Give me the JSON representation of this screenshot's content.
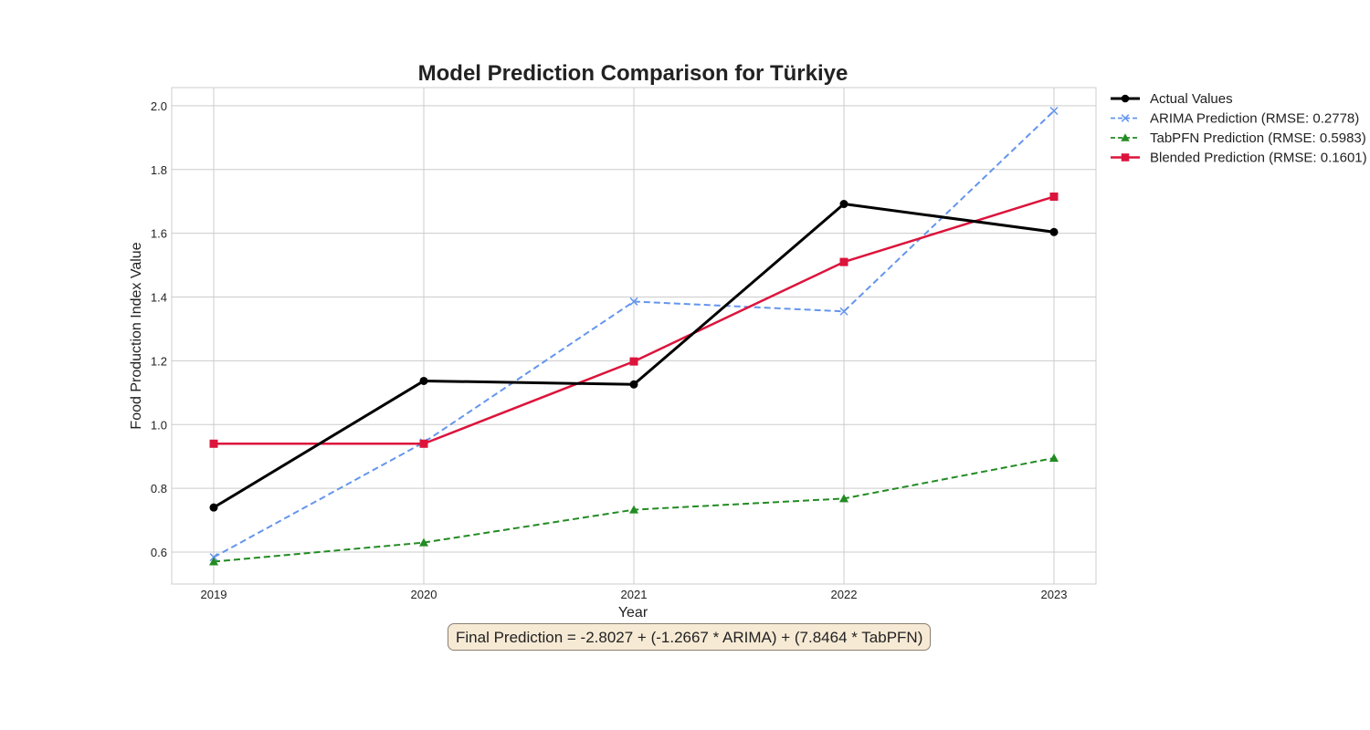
{
  "chart_data": {
    "type": "line",
    "title": "Model Prediction Comparison for Türkiye",
    "xlabel": "Year",
    "ylabel": "Food Production Index Value",
    "x": [
      "2019",
      "2020",
      "2021",
      "2022",
      "2023"
    ],
    "xlim": [
      2018.8,
      2023.2
    ],
    "ylim": [
      0.5,
      2.057
    ],
    "y_ticks": [
      "0.6",
      "0.8",
      "1.0",
      "1.2",
      "1.4",
      "1.6",
      "1.8",
      "2.0"
    ],
    "grid": true,
    "legend_position": "outside top-right",
    "series": [
      {
        "name": "Actual Values",
        "values": [
          0.74,
          1.137,
          1.126,
          1.692,
          1.604
        ],
        "color": "#000000",
        "style": "solid",
        "marker": "circle"
      },
      {
        "name": "ARIMA Prediction (RMSE: 0.2778)",
        "values": [
          0.584,
          0.944,
          1.386,
          1.355,
          1.984
        ],
        "color": "#6495ed",
        "style": "dashed",
        "marker": "x"
      },
      {
        "name": "TabPFN Prediction (RMSE: 0.5983)",
        "values": [
          0.57,
          0.63,
          0.733,
          0.768,
          0.895
        ],
        "color": "#228b22",
        "style": "dashed",
        "marker": "triangle"
      },
      {
        "name": "Blended Prediction (RMSE: 0.1601)",
        "values": [
          0.94,
          0.94,
          1.198,
          1.51,
          1.715
        ],
        "color": "#dc143c",
        "style": "solid",
        "marker": "square"
      }
    ],
    "annotation": "Final Prediction = -2.8027 + (-1.2667 * ARIMA) + (7.8464 * TabPFN)"
  }
}
